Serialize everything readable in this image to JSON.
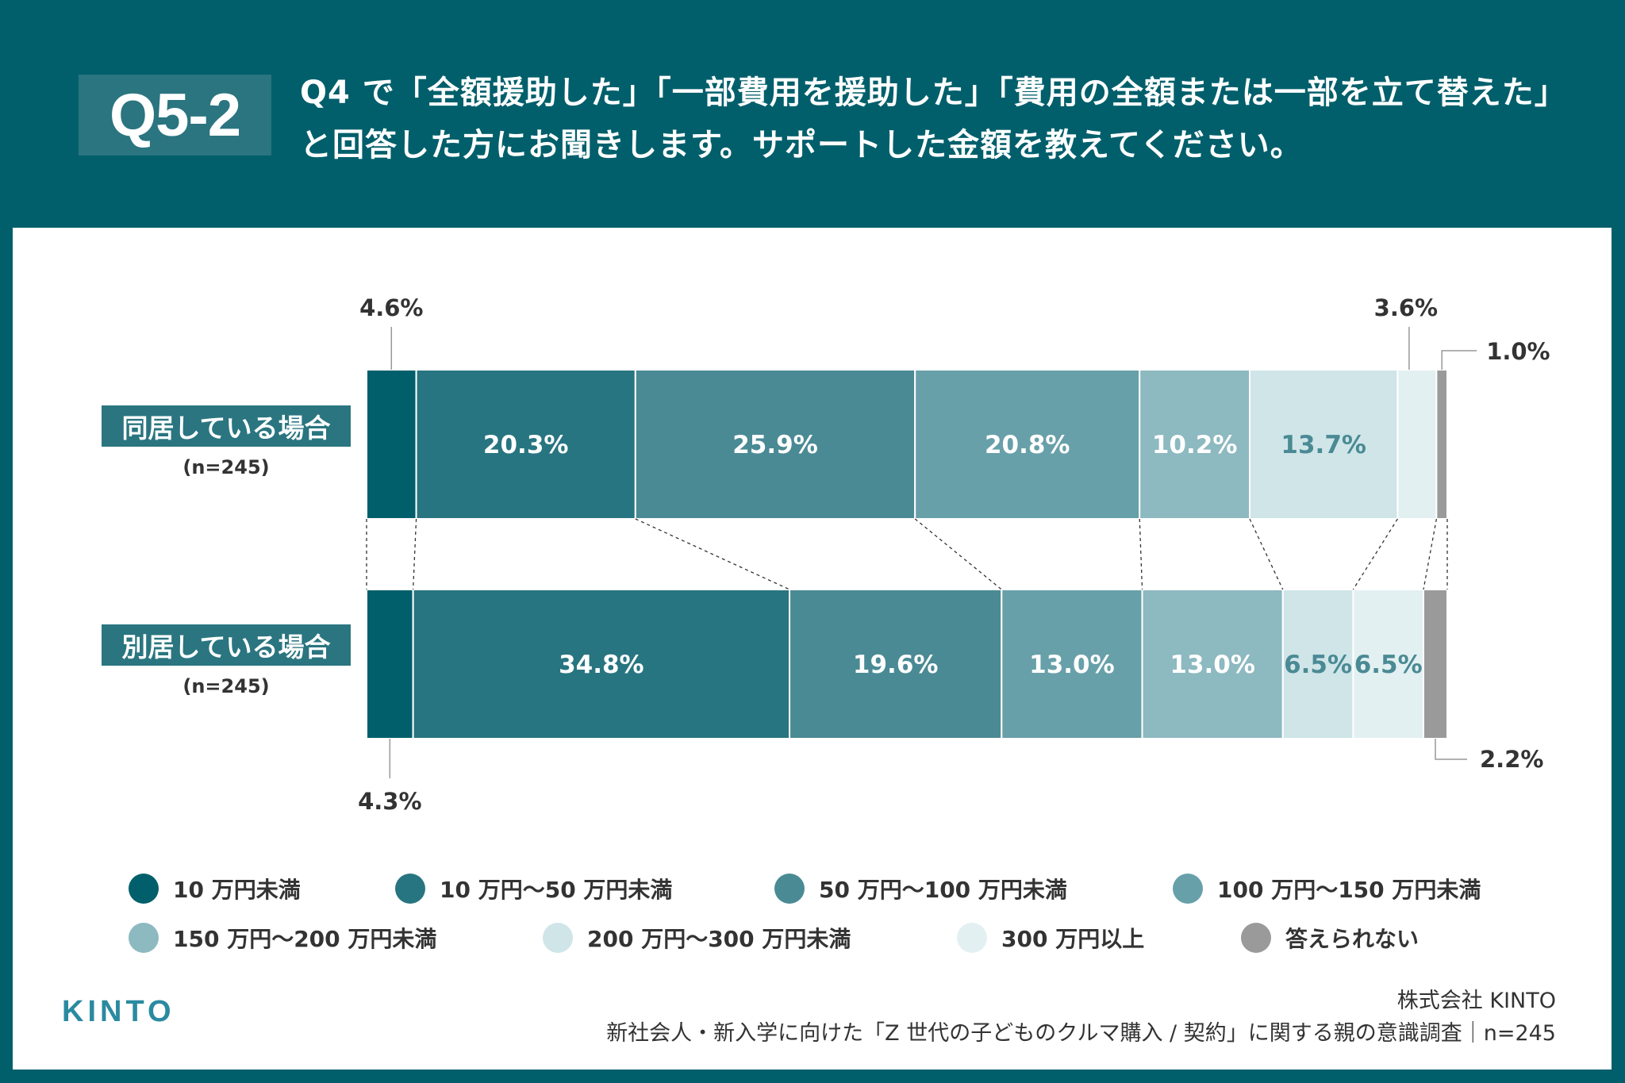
{
  "header": {
    "qnum": "Q5-2",
    "title": "Q4 で「全額援助した」「一部費用を援助した」「費用の全額または一部を立て替えた」と回答した方にお聞きします。サポートした金額を教えてください。"
  },
  "chart_data": {
    "type": "bar",
    "orientation": "horizontal-stacked-100",
    "categories": [
      "同居している場合",
      "別居している場合"
    ],
    "sample_sizes": [
      "(n=245)",
      "(n=245)"
    ],
    "series": [
      {
        "name": "10 万円未満",
        "color": "#005f6b",
        "values": [
          4.6,
          4.3
        ]
      },
      {
        "name": "10 万円〜50 万円未満",
        "color": "#277580",
        "values": [
          20.3,
          34.8
        ]
      },
      {
        "name": "50 万円〜100 万円未満",
        "color": "#4a8a94",
        "values": [
          25.9,
          19.6
        ]
      },
      {
        "name": "100 万円〜150 万円未満",
        "color": "#68a0aa",
        "values": [
          20.8,
          13.0
        ]
      },
      {
        "name": "150 万円〜200 万円未満",
        "color": "#8db9c0",
        "values": [
          10.2,
          13.0
        ]
      },
      {
        "name": "200 万円〜300 万円未満",
        "color": "#cfe5e8",
        "values": [
          13.7,
          6.5
        ]
      },
      {
        "name": "300 万円以上",
        "color": "#e3f0f2",
        "values": [
          3.6,
          6.5
        ]
      },
      {
        "name": "答えられない",
        "color": "#9a9a9a",
        "values": [
          1.0,
          2.2
        ]
      }
    ],
    "legend_position": "bottom"
  },
  "footer": {
    "logo": "KINTO",
    "company": "株式会社 KINTO",
    "source": "新社会人・新入学に向けた「Z 世代の子どものクルマ購入 / 契約」に関する親の意識調査｜n=245"
  }
}
